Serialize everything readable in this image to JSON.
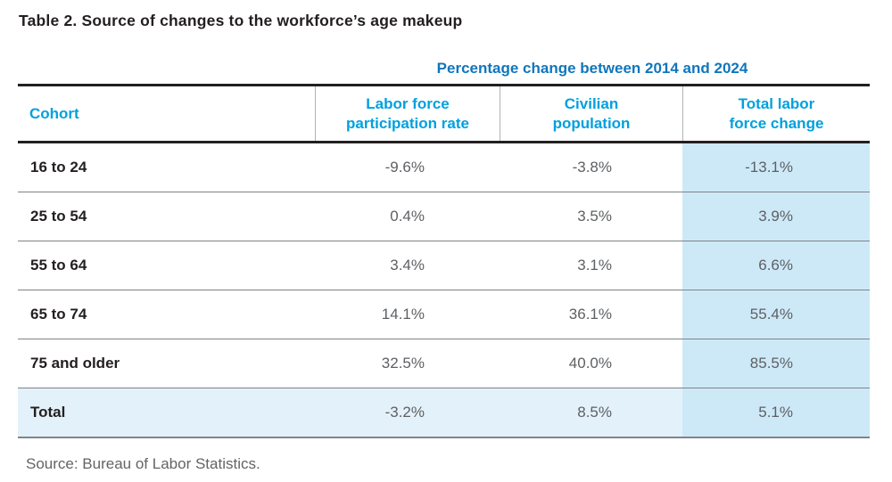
{
  "title": "Table 2. Source of changes to the workforce’s age makeup",
  "table": {
    "span_header": "Percentage change between 2014 and 2024",
    "columns": {
      "cohort": "Cohort",
      "lfpr_line1": "Labor force",
      "lfpr_line2": "participation rate",
      "civ_line1": "Civilian",
      "civ_line2": "population",
      "total_line1": "Total labor",
      "total_line2": "force change"
    },
    "rows": [
      {
        "cohort": "16 to 24",
        "lfpr": "-9.6%",
        "civ": "-3.8%",
        "total": "-13.1%"
      },
      {
        "cohort": "25 to 54",
        "lfpr": "0.4%",
        "civ": "3.5%",
        "total": "3.9%"
      },
      {
        "cohort": "55 to 64",
        "lfpr": "3.4%",
        "civ": "3.1%",
        "total": "6.6%"
      },
      {
        "cohort": "65 to 74",
        "lfpr": "14.1%",
        "civ": "36.1%",
        "total": "55.4%"
      },
      {
        "cohort": "75 and older",
        "lfpr": "32.5%",
        "civ": "40.0%",
        "total": "85.5%"
      },
      {
        "cohort": "Total",
        "lfpr": "-3.2%",
        "civ": "8.5%",
        "total": "5.1%"
      }
    ]
  },
  "source": "Source: Bureau of Labor Statistics.",
  "colors": {
    "span_header_blue": "#1076bc",
    "column_header_cyan": "#00a0de",
    "highlight_column_blue": "#cde9f8",
    "total_row_blue": "#e3f1fa",
    "thick_rule": "#231f20",
    "thin_rule": "#808285",
    "value_gray": "#5e6063",
    "source_gray": "#636466"
  }
}
